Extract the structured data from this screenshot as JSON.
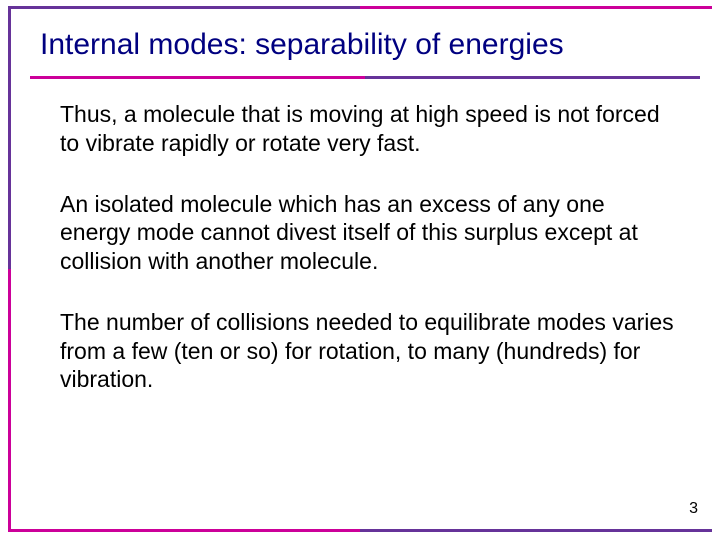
{
  "slide": {
    "title": "Internal modes: separability of energies",
    "paragraphs": [
      "Thus, a molecule that is moving at high speed is not forced to vibrate rapidly or rotate very fast.",
      "An isolated molecule which has an excess of any one energy mode cannot divest itself of this surplus except at collision with another molecule.",
      "The number of collisions needed to equilibrate modes varies from a few (ten or so) for rotation, to many (hundreds) for vibration."
    ],
    "page_number": "3",
    "colors": {
      "title": "#000080",
      "body": "#000000",
      "accent_purple": "#663399",
      "accent_magenta": "#cc0099",
      "background": "#ffffff"
    },
    "fonts": {
      "title_size_pt": 30,
      "body_size_pt": 23,
      "family": "Comic Sans MS"
    }
  }
}
